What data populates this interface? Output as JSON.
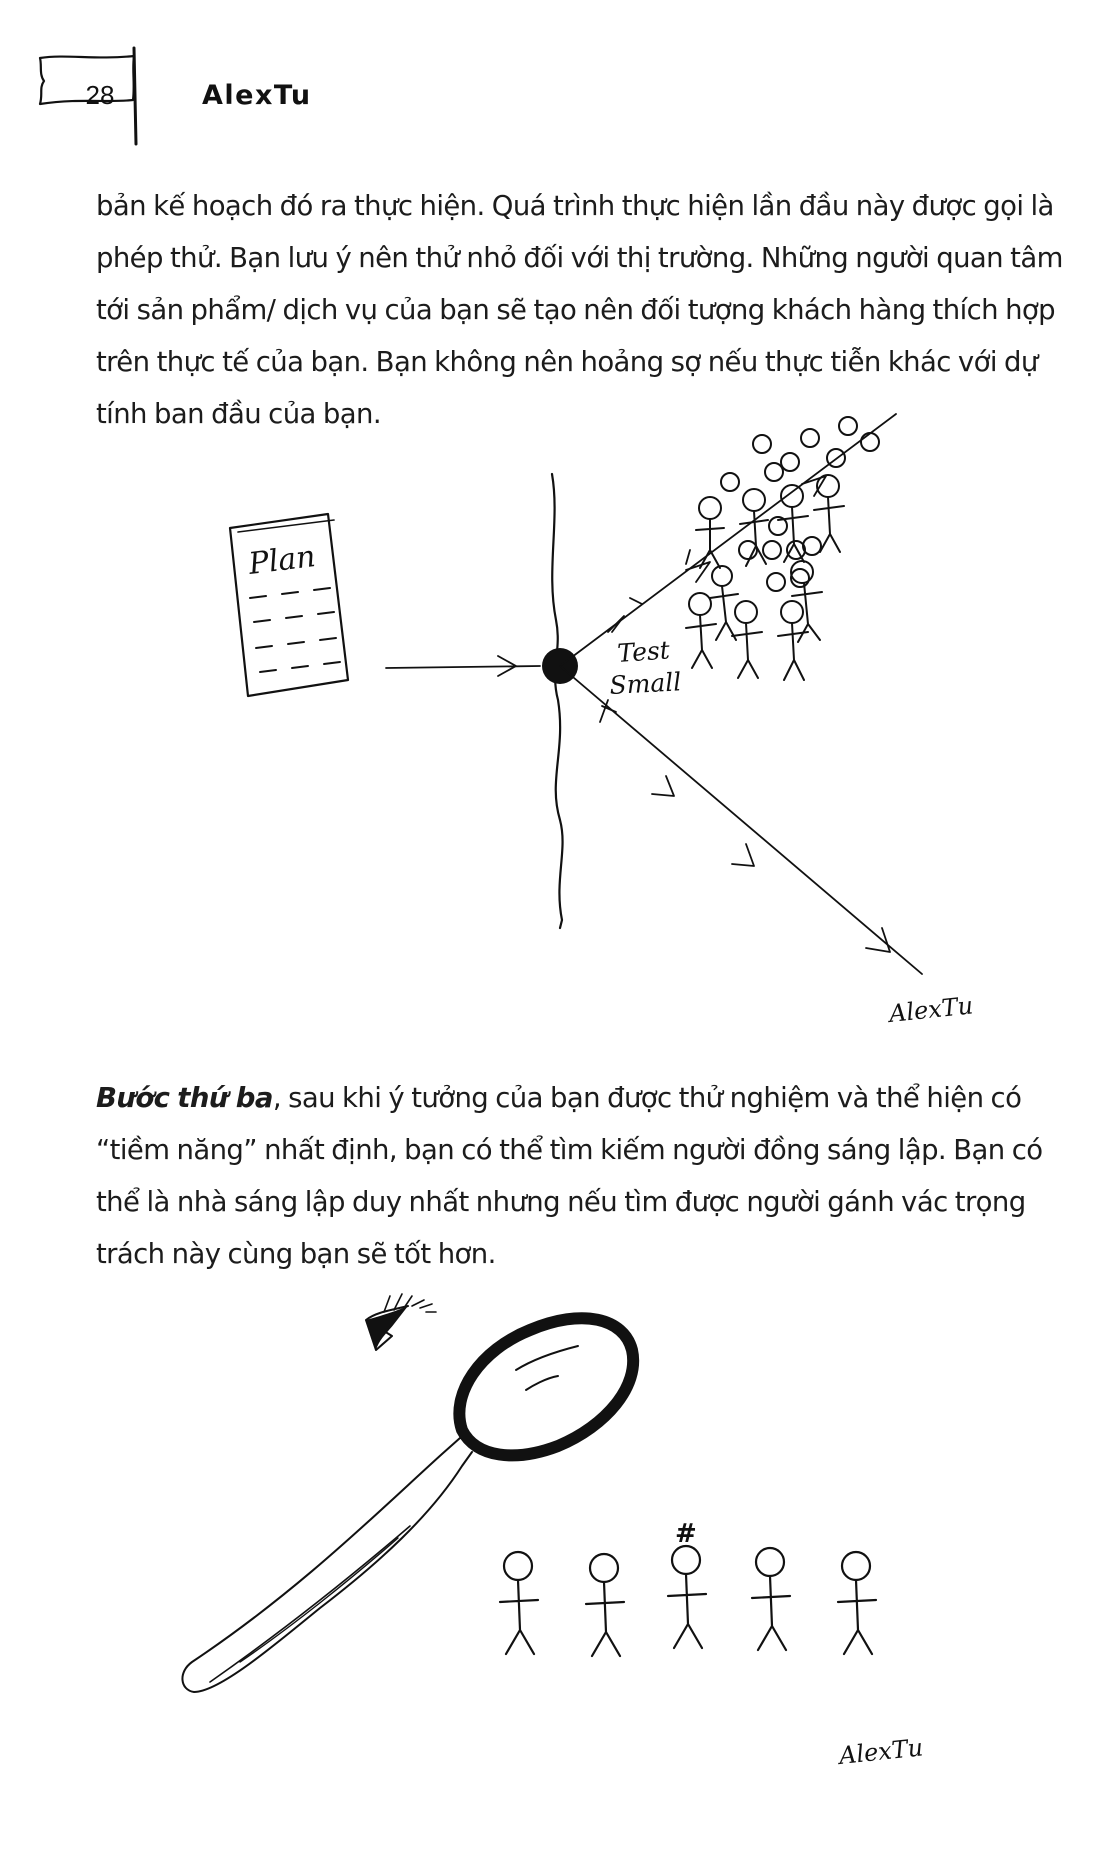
{
  "header": {
    "page_number": "28",
    "running_head": "AlexTu"
  },
  "body": {
    "paragraph_1": "bản kế hoạch đó ra thực hiện. Quá trình thực hiện lần đầu này được gọi là phép thử. Bạn lưu ý nên thử nhỏ đối với thị trường. Những người quan tâm tới sản phẩm/ dịch vụ của bạn sẽ tạo nên đối tượng khách hàng thích hợp trên thực tế của bạn. Bạn không nên hoảng sợ nếu thực tiễn khác với dự tính ban đầu của bạn.",
    "paragraph_2_lead": "Bước thứ ba",
    "paragraph_2_rest": ", sau khi ý tưởng của bạn được thử nghiệm và thể hiện có “tiềm năng” nhất định, bạn có thể tìm kiếm người đồng sáng lập. Bạn có thể là nhà sáng lập duy nhất nhưng nếu tìm được người gánh vác trọng trách này cùng bạn sẽ tốt hơn."
  },
  "figure_1": {
    "plan_label": "Plan",
    "test_label_line1": "Test",
    "test_label_line2": "Small",
    "signature": "AlexTu"
  },
  "figure_2": {
    "marked_person_symbol": "#",
    "signature": "AlexTu"
  }
}
